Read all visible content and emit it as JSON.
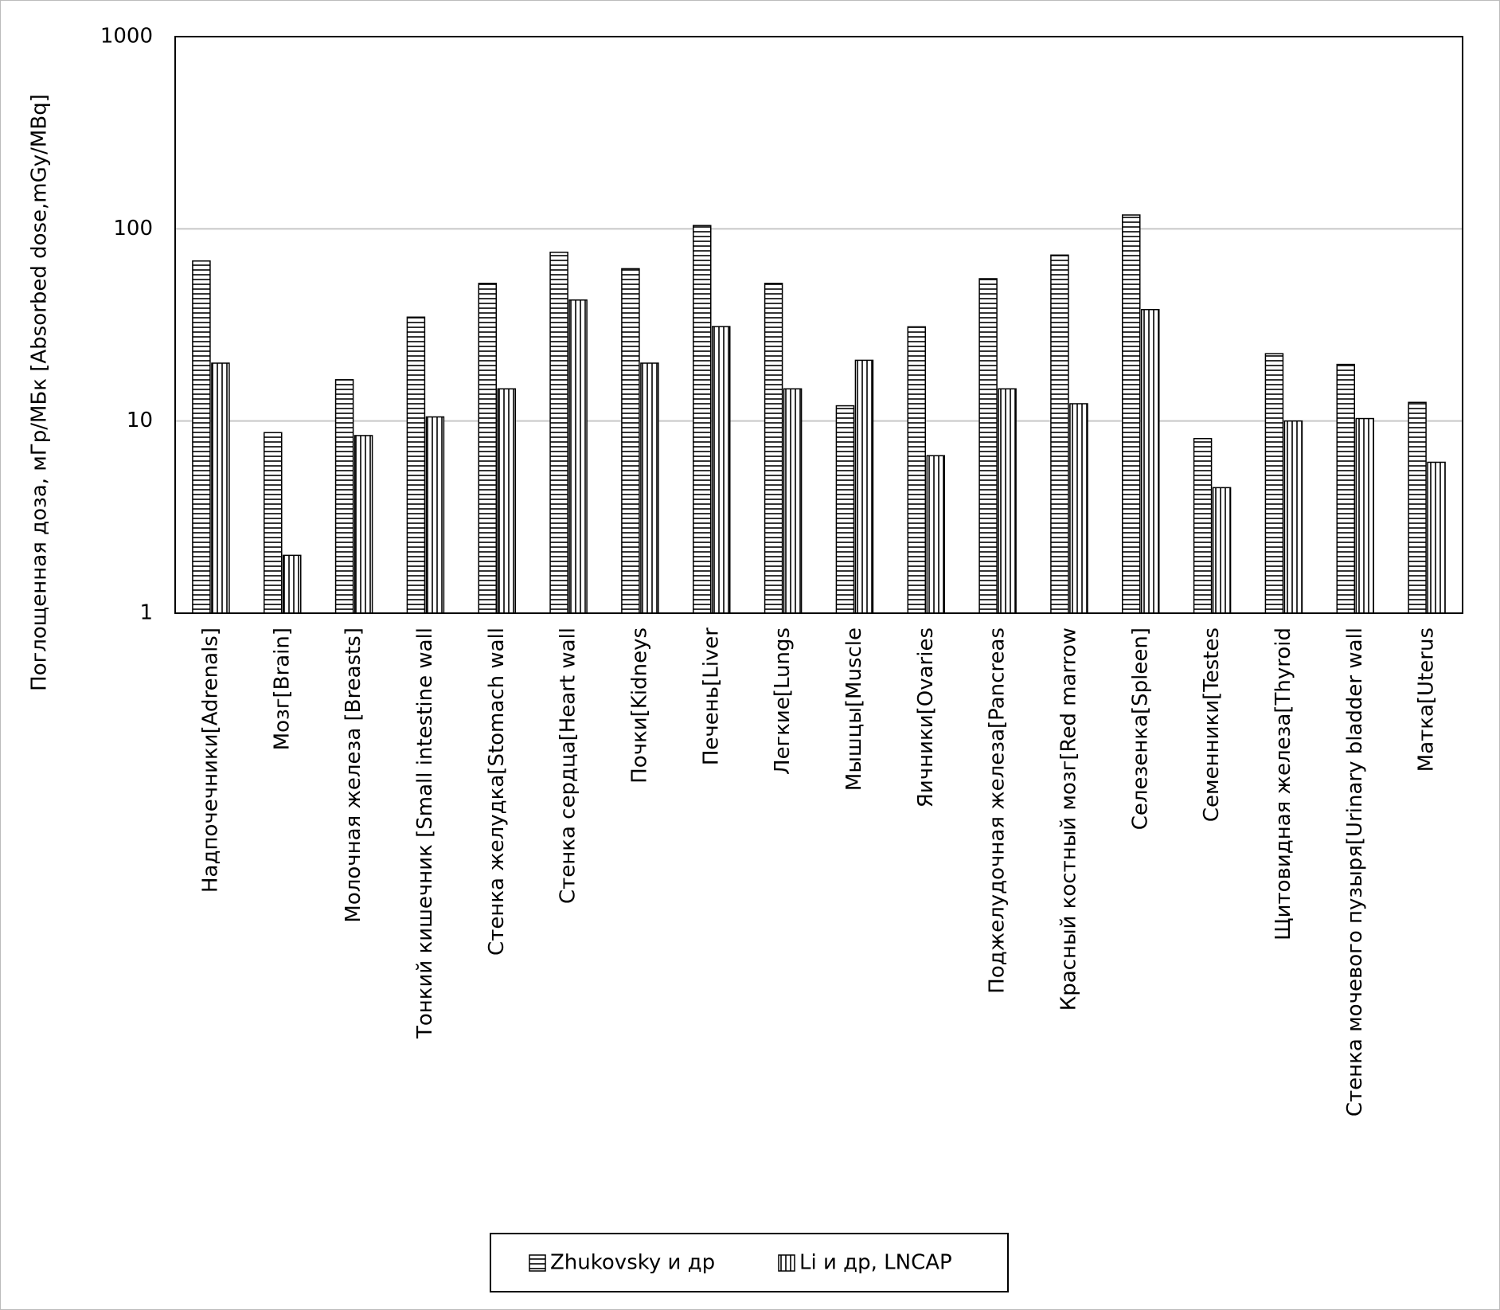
{
  "chart_data": {
    "type": "bar",
    "y_label": "Поглощенная доза, мГр/МБк [Absorbed dose,mGy/MBq]",
    "categories": [
      "Надпочечники[Adrenals]",
      "Мозг[Brain]",
      "Молочная железа [Breasts]",
      "Тонкий кишечник [Small intestine wall",
      "Стенка желудка[Stomach wall",
      "Стенка сердца[Heart wall",
      "Почки[Kidneys",
      "Печень[Liver",
      "Легкие[Lungs",
      "Мышцы[Muscle",
      "Яичники[Ovaries",
      "Поджелудочная железа[Pancreas",
      "Красный костный мозг[Red marrow",
      "Селезенка[Spleen]",
      "Семенники[Testes",
      "Щитовидная железа[Thyroid",
      "Стенка мочевого пузыря[Urinary bladder wall",
      "Матка[Uterus"
    ],
    "series": [
      {
        "name": "Zhukovsky и др",
        "color": "#000000",
        "pattern": "horizontal",
        "values": [
          68,
          8.7,
          16.4,
          34.7,
          52,
          75.5,
          62,
          104,
          52,
          12,
          30.9,
          55,
          73,
          118,
          8.1,
          22.4,
          19.7,
          12.5
        ]
      },
      {
        "name": "Li и др, LNCAP",
        "color": "#000000",
        "pattern": "vertical",
        "values": [
          20,
          2.0,
          8.4,
          10.5,
          14.7,
          42.6,
          20,
          31,
          14.7,
          20.7,
          6.6,
          14.7,
          12.3,
          38,
          4.5,
          10,
          10.3,
          6.1
        ]
      }
    ],
    "log_scale": true,
    "ylim": [
      1,
      1000
    ],
    "yticks": [
      1,
      10,
      100,
      1000
    ],
    "grid": true,
    "legend": "bottom"
  }
}
